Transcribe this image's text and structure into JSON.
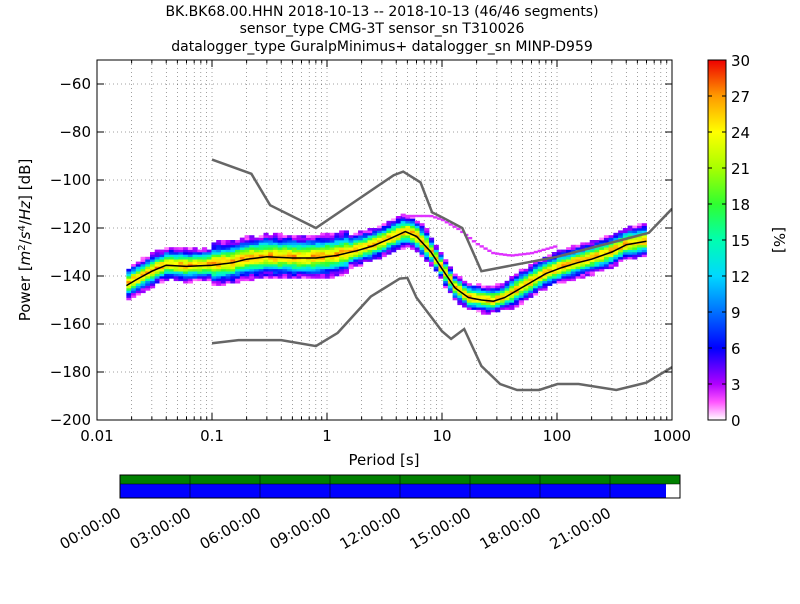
{
  "header": {
    "title_line1": "BK.BK68.00.HHN   2018-10-13 -- 2018-10-13  (46/46 segments)",
    "title_line2": "sensor_type CMG-3T sensor_sn T310026",
    "title_line3": "datalogger_type GuralpMinimus+ datalogger_sn MINP-D959"
  },
  "chart_data": {
    "type": "heatmap",
    "xlabel": "Period [s]",
    "ylabel": "Power [m²/s⁴/Hz] [dB]",
    "x_scale": "log",
    "xlim": [
      0.01,
      1000
    ],
    "ylim": [
      -200,
      -50
    ],
    "x_ticks": [
      {
        "value": 0.01,
        "label": "0.01"
      },
      {
        "value": 0.1,
        "label": "0.1"
      },
      {
        "value": 1,
        "label": "1"
      },
      {
        "value": 10,
        "label": "10"
      },
      {
        "value": 100,
        "label": "100"
      },
      {
        "value": 1000,
        "label": "1000"
      }
    ],
    "y_ticks": [
      {
        "value": -60,
        "label": "−60"
      },
      {
        "value": -80,
        "label": "−80"
      },
      {
        "value": -100,
        "label": "−100"
      },
      {
        "value": -120,
        "label": "−120"
      },
      {
        "value": -140,
        "label": "−140"
      },
      {
        "value": -160,
        "label": "−160"
      },
      {
        "value": -180,
        "label": "−180"
      },
      {
        "value": -200,
        "label": "−200"
      }
    ],
    "grid": true,
    "colorbar": {
      "label": "[%]",
      "range": [
        0,
        30
      ],
      "ticks": [
        {
          "value": 0,
          "label": "0"
        },
        {
          "value": 3,
          "label": "3"
        },
        {
          "value": 6,
          "label": "6"
        },
        {
          "value": 9,
          "label": "9"
        },
        {
          "value": 12,
          "label": "12"
        },
        {
          "value": 15,
          "label": "15"
        },
        {
          "value": 18,
          "label": "18"
        },
        {
          "value": 21,
          "label": "21"
        },
        {
          "value": 24,
          "label": "24"
        },
        {
          "value": 27,
          "label": "27"
        },
        {
          "value": 30,
          "label": "30"
        }
      ]
    },
    "noise_models": {
      "high": [
        [
          0.1,
          -91.5
        ],
        [
          0.22,
          -97.4
        ],
        [
          0.32,
          -110.5
        ],
        [
          0.8,
          -120
        ],
        [
          3.8,
          -98
        ],
        [
          4.6,
          -96.5
        ],
        [
          6.5,
          -101
        ],
        [
          8.2,
          -113.5
        ],
        [
          10,
          -115.5
        ],
        [
          15,
          -120
        ],
        [
          22,
          -138
        ],
        [
          100,
          -132
        ],
        [
          630,
          -122
        ],
        [
          1000,
          -112
        ]
      ],
      "low": [
        [
          0.1,
          -168
        ],
        [
          0.17,
          -166.7
        ],
        [
          0.4,
          -166.7
        ],
        [
          0.8,
          -169.2
        ],
        [
          1.24,
          -163.7
        ],
        [
          2.4,
          -148.6
        ],
        [
          4.3,
          -141.1
        ],
        [
          5.0,
          -140.8
        ],
        [
          6.0,
          -149
        ],
        [
          10,
          -163
        ],
        [
          12,
          -166.2
        ],
        [
          15.6,
          -162.1
        ],
        [
          22,
          -177.5
        ],
        [
          32,
          -185
        ],
        [
          45,
          -187.5
        ],
        [
          70,
          -187.5
        ],
        [
          101,
          -185
        ],
        [
          154,
          -185
        ],
        [
          328,
          -187.5
        ],
        [
          600,
          -184.4
        ],
        [
          1000,
          -178
        ]
      ]
    },
    "mode_curve": [
      [
        0.018,
        -144
      ],
      [
        0.022,
        -141.5
      ],
      [
        0.03,
        -138
      ],
      [
        0.04,
        -135.5
      ],
      [
        0.06,
        -136
      ],
      [
        0.1,
        -135.5
      ],
      [
        0.15,
        -134.5
      ],
      [
        0.2,
        -133
      ],
      [
        0.3,
        -132
      ],
      [
        0.5,
        -132.5
      ],
      [
        0.8,
        -132.5
      ],
      [
        1.2,
        -131.5
      ],
      [
        1.8,
        -129.5
      ],
      [
        2.5,
        -127.5
      ],
      [
        3.5,
        -124.5
      ],
      [
        4.8,
        -121.5
      ],
      [
        6,
        -123.5
      ],
      [
        8,
        -130
      ],
      [
        10,
        -137
      ],
      [
        13,
        -145
      ],
      [
        17,
        -149
      ],
      [
        22,
        -150
      ],
      [
        28,
        -150.5
      ],
      [
        35,
        -149
      ],
      [
        45,
        -146
      ],
      [
        60,
        -142.5
      ],
      [
        80,
        -139
      ],
      [
        110,
        -136.5
      ],
      [
        150,
        -134.5
      ],
      [
        200,
        -133
      ],
      [
        300,
        -130
      ],
      [
        400,
        -127
      ],
      [
        600,
        -125.5
      ]
    ],
    "outlier_curve": [
      [
        4.5,
        -115.5
      ],
      [
        8,
        -115.5
      ],
      [
        10,
        -117
      ],
      [
        14,
        -121
      ],
      [
        20,
        -127
      ],
      [
        28,
        -131
      ],
      [
        40,
        -132
      ],
      [
        60,
        -131
      ],
      [
        100,
        -128
      ]
    ]
  },
  "timeline": {
    "labels": [
      "00:00:00",
      "03:00:00",
      "06:00:00",
      "09:00:00",
      "12:00:00",
      "15:00:00",
      "18:00:00",
      "21:00:00"
    ],
    "hours_span": 24,
    "data_coverage_hours": 23.4,
    "colors": {
      "top": "#008000",
      "bottom": "#0000ff"
    }
  },
  "colors": {
    "noise_model": "#666666",
    "mode": "#000000"
  }
}
